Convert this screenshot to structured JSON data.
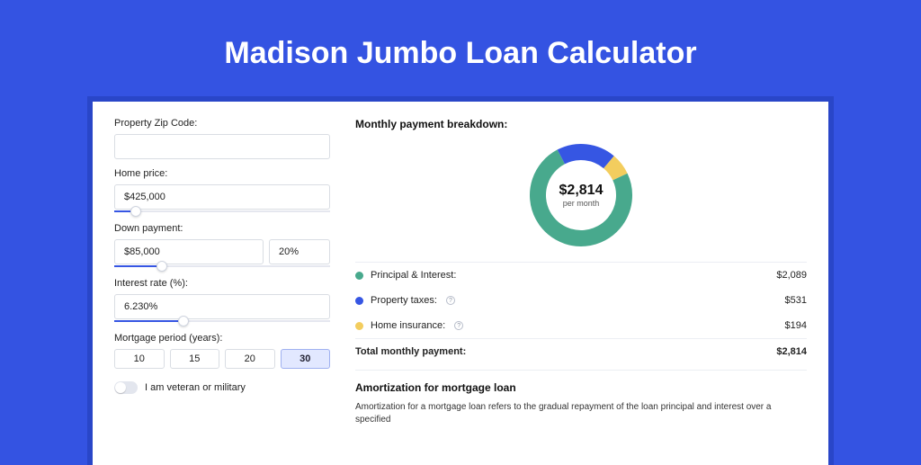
{
  "colors": {
    "page_bg": "#3453e2",
    "frame_bg": "#2946c8",
    "panel_bg": "#ffffff",
    "slider_fill": "#3656e3",
    "pi": "#48a98d",
    "tax": "#3656e3",
    "ins": "#f3cd5e"
  },
  "header": {
    "title": "Madison Jumbo Loan Calculator"
  },
  "form": {
    "zip": {
      "label": "Property Zip Code:",
      "value": ""
    },
    "home_price": {
      "label": "Home price:",
      "value": "$425,000",
      "slider_pct": 10
    },
    "down_payment": {
      "label": "Down payment:",
      "value": "$85,000",
      "pct": "20%",
      "slider_pct": 22
    },
    "interest": {
      "label": "Interest rate (%):",
      "value": "6.230%",
      "slider_pct": 32
    },
    "period": {
      "label": "Mortgage period (years):",
      "options": [
        "10",
        "15",
        "20",
        "30"
      ],
      "selected": "30"
    },
    "veteran": {
      "label": "I am veteran or military",
      "on": false
    }
  },
  "breakdown": {
    "title": "Monthly payment breakdown:",
    "center_amount": "$2,814",
    "center_sub": "per month",
    "donut": {
      "radius": 48,
      "stroke": 18,
      "segments": [
        {
          "key": "pi",
          "value": 2089,
          "color": "#48a98d"
        },
        {
          "key": "tax",
          "value": 531,
          "color": "#3656e3"
        },
        {
          "key": "ins",
          "value": 194,
          "color": "#f3cd5e"
        }
      ]
    },
    "rows": [
      {
        "label": "Principal & Interest:",
        "value": "$2,089",
        "color": "#48a98d",
        "info": false
      },
      {
        "label": "Property taxes:",
        "value": "$531",
        "color": "#3656e3",
        "info": true
      },
      {
        "label": "Home insurance:",
        "value": "$194",
        "color": "#f3cd5e",
        "info": true
      }
    ],
    "total": {
      "label": "Total monthly payment:",
      "value": "$2,814"
    }
  },
  "amort": {
    "title": "Amortization for mortgage loan",
    "text": "Amortization for a mortgage loan refers to the gradual repayment of the loan principal and interest over a specified"
  }
}
